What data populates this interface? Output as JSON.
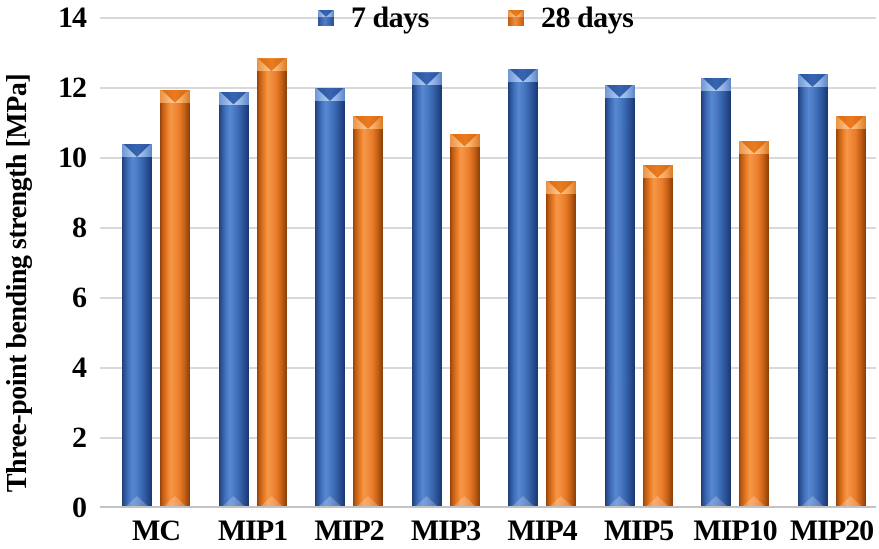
{
  "chart_data": {
    "type": "bar",
    "title": "",
    "categories": [
      "MC",
      "MIP1",
      "MIP2",
      "MIP3",
      "MIP4",
      "MIP5",
      "MIP10",
      "MIP20"
    ],
    "series": [
      {
        "name": "7 days",
        "color": "#3f6eb5",
        "values": [
          10.4,
          11.9,
          12.0,
          12.45,
          12.55,
          12.1,
          12.3,
          12.4
        ]
      },
      {
        "name": "28 days",
        "color": "#ed7d2e",
        "values": [
          11.95,
          12.85,
          11.2,
          10.7,
          9.35,
          9.8,
          10.5,
          11.2
        ]
      }
    ],
    "xlabel": "",
    "ylabel": "Three-point bending strength [MPa]",
    "ylim": [
      0,
      14
    ],
    "ytick_step": 2,
    "yticks": [
      "0",
      "2",
      "4",
      "6",
      "8",
      "10",
      "12",
      "14"
    ],
    "grid": true,
    "legend_position": "top-center"
  },
  "colors": {
    "grid": "#d9d9d9",
    "axis": "#c3c3c3",
    "text": "#000000",
    "background": "#ffffff"
  }
}
